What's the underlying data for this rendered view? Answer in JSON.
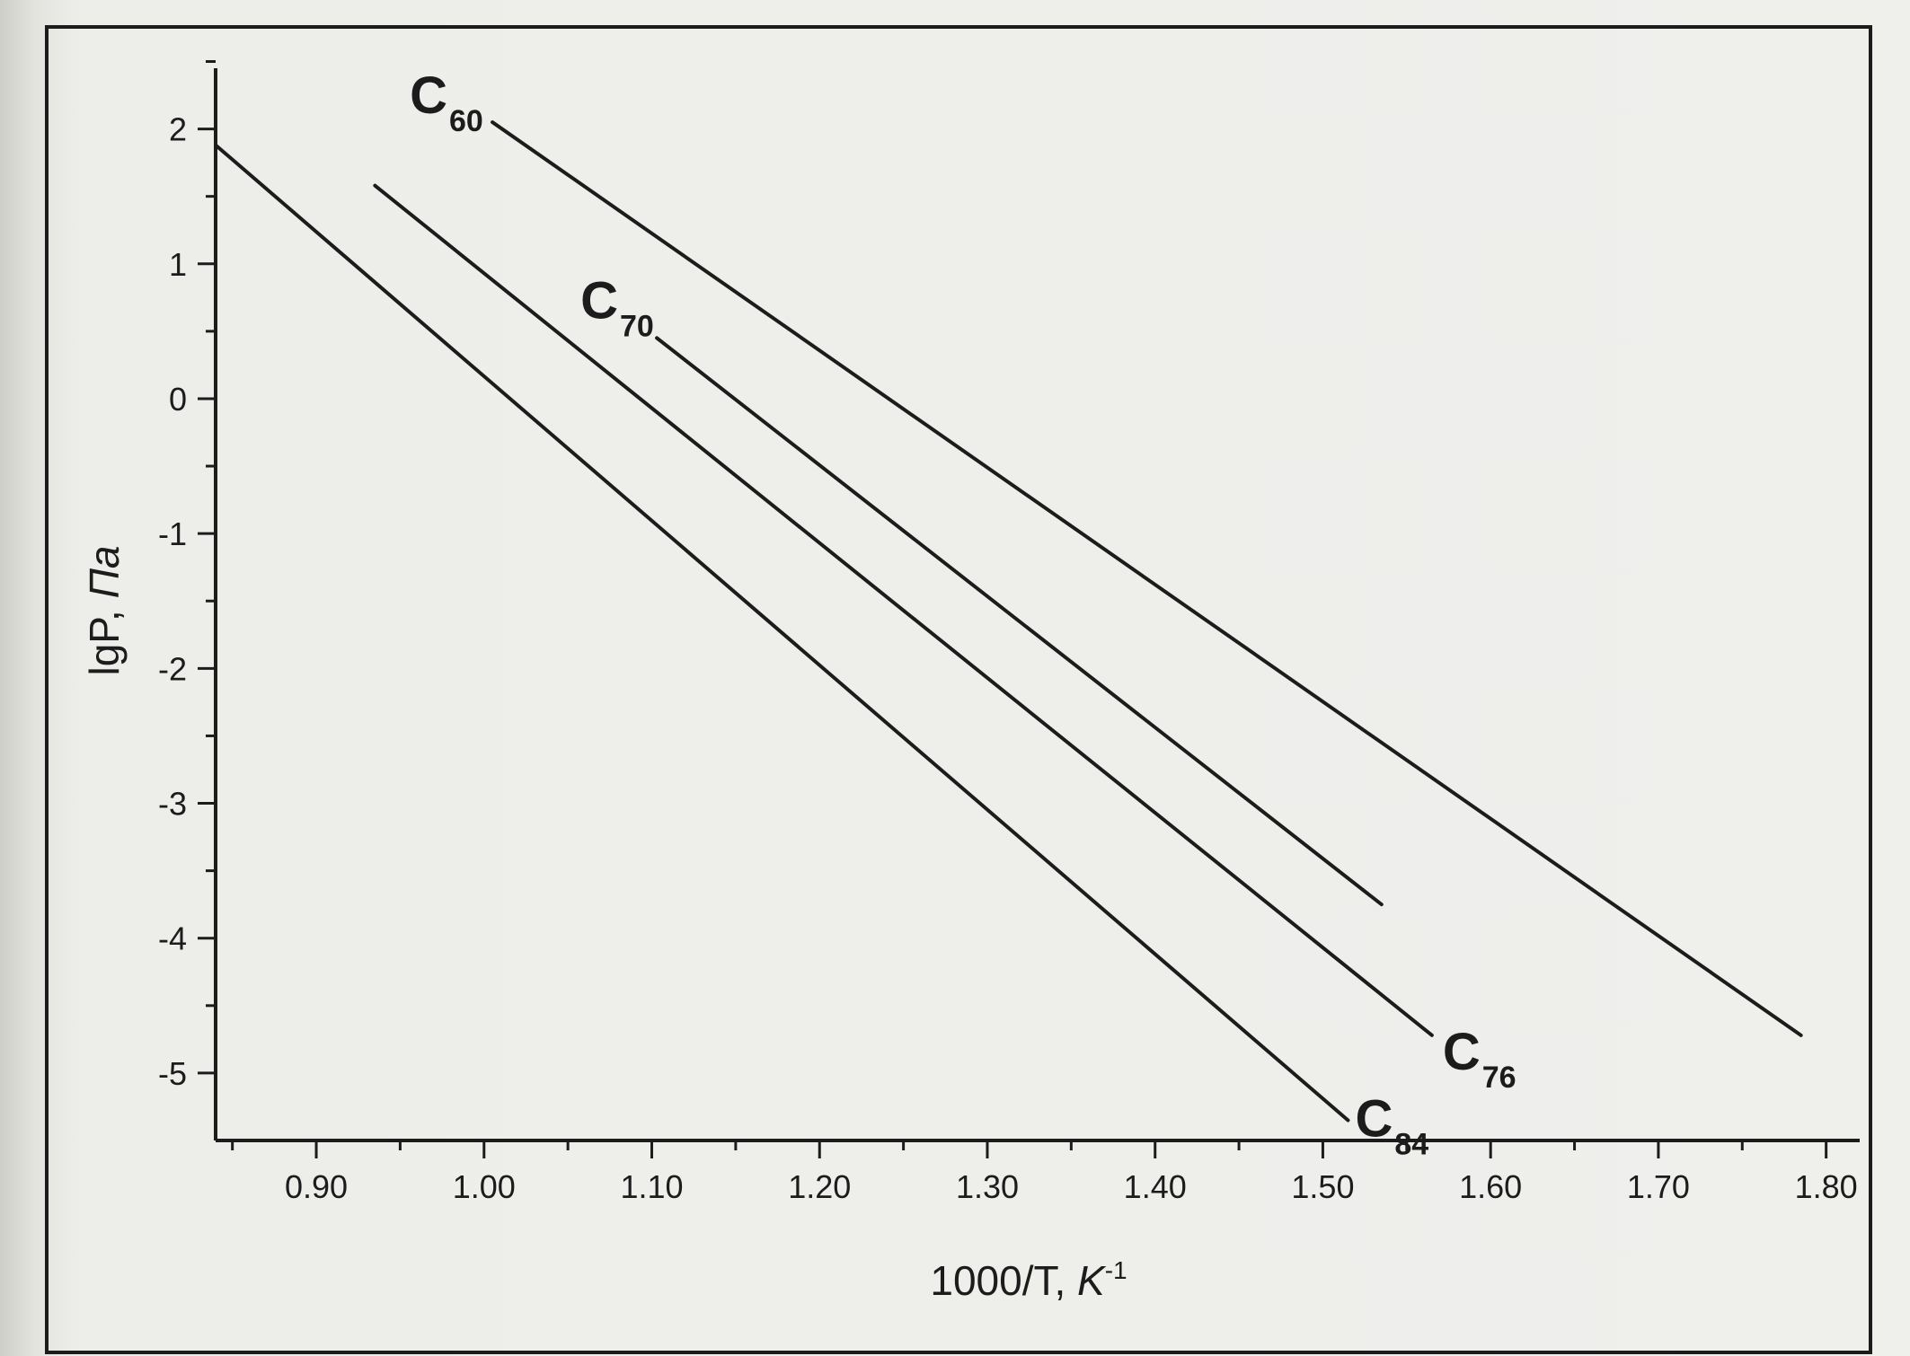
{
  "chart_data": {
    "type": "line",
    "xlabel": "1000/T, ",
    "xlabel_unit": "K",
    "xlabel_unit_sup": "-1",
    "ylabel": "lgP, ",
    "ylabel_unit": "Па",
    "xlim": [
      0.84,
      1.82
    ],
    "ylim": [
      -5.5,
      2.45
    ],
    "x_ticks": [
      0.9,
      1.0,
      1.1,
      1.2,
      1.3,
      1.4,
      1.5,
      1.6,
      1.7,
      1.8
    ],
    "x_tick_labels": [
      "0.90",
      "1.00",
      "1.10",
      "1.20",
      "1.30",
      "1.40",
      "1.50",
      "1.60",
      "1.70",
      "1.80"
    ],
    "y_ticks": [
      2,
      1,
      0,
      -1,
      -2,
      -3,
      -4,
      -5
    ],
    "y_tick_labels": [
      "2",
      "1",
      "0",
      "-1",
      "-2",
      "-3",
      "-4",
      "-5"
    ],
    "grid": false,
    "colors": {
      "line": "#1c1c1c",
      "background": "#efefec"
    },
    "series": [
      {
        "name": "C",
        "sub": "60",
        "x": [
          1.005,
          1.785
        ],
        "y": [
          2.05,
          -4.72
        ]
      },
      {
        "name": "C",
        "sub": "70",
        "x": [
          1.103,
          1.535
        ],
        "y": [
          0.45,
          -3.75
        ]
      },
      {
        "name": "C",
        "sub": "76",
        "x": [
          0.935,
          1.565
        ],
        "y": [
          1.58,
          -4.72
        ]
      },
      {
        "name": "C",
        "sub": "84",
        "x": [
          0.84,
          1.515
        ],
        "y": [
          1.88,
          -5.35
        ]
      }
    ]
  }
}
